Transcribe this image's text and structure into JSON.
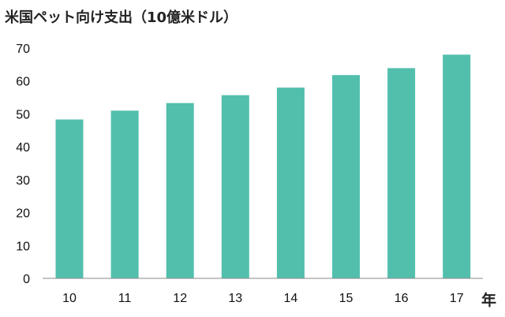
{
  "chart_data": {
    "type": "bar",
    "title": "米国ペット向け支出（10億米ドル）",
    "xlabel": "年",
    "ylabel": "",
    "categories": [
      "10",
      "11",
      "12",
      "13",
      "14",
      "15",
      "16",
      "17"
    ],
    "values": [
      48.3,
      51.0,
      53.3,
      55.7,
      58.0,
      61.8,
      63.9,
      68.0
    ],
    "ylim": [
      0,
      70
    ],
    "yticks": [
      0,
      10,
      20,
      30,
      40,
      50,
      60,
      70
    ],
    "grid": false,
    "legend": "none",
    "bar_color": "#52bfad",
    "axis_color": "#888888"
  }
}
